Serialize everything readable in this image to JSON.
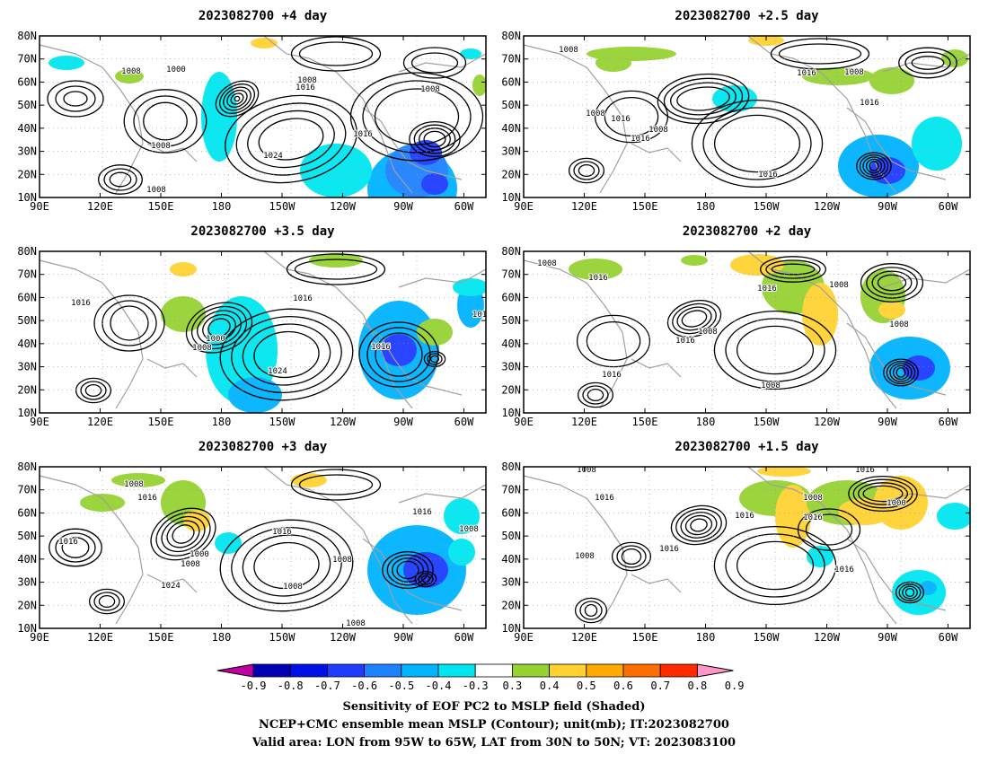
{
  "panels": [
    {
      "title": "2023082700  +4 day"
    },
    {
      "title": "2023082700  +2.5  day"
    },
    {
      "title": "2023082700  +3.5  day"
    },
    {
      "title": "2023082700  +2  day"
    },
    {
      "title": "2023082700  +3  day"
    },
    {
      "title": "2023082700  +1.5  day"
    }
  ],
  "lat_ticks": [
    "80N",
    "70N",
    "60N",
    "50N",
    "40N",
    "30N",
    "20N",
    "10N"
  ],
  "lon_ticks": [
    "90E",
    "120E",
    "150E",
    "180",
    "150W",
    "120W",
    "90W",
    "60W"
  ],
  "contour_labels": [
    [
      "1008",
      "1000",
      "1008",
      "1016",
      "1008",
      "1016",
      "1024",
      "1008",
      "1008"
    ],
    [
      "1008",
      "1016",
      "1008",
      "1008",
      "1016",
      "1008",
      "1016",
      "1016",
      "1016"
    ],
    [
      "1016",
      "1016",
      "1000",
      "1008",
      "1024",
      "1016",
      "101"
    ],
    [
      "1008",
      "1016",
      "1016",
      "1008",
      "1008",
      "1016",
      "1008",
      "1016",
      "1008"
    ],
    [
      "1008",
      "1016",
      "1016",
      "1000",
      "1008",
      "1016",
      "1024",
      "1008",
      "1008",
      "1016",
      "1008",
      "1008"
    ],
    [
      "1008",
      "1016",
      "1008",
      "1016",
      "1016",
      "1008",
      "1016",
      "1000",
      "1016",
      "1016"
    ]
  ],
  "colorbar": {
    "ticks": [
      "-0.9",
      "-0.8",
      "-0.7",
      "-0.6",
      "-0.5",
      "-0.4",
      "-0.3",
      "0.3",
      "0.4",
      "0.5",
      "0.6",
      "0.7",
      "0.8",
      "0.9"
    ],
    "colors": [
      "#c000a0",
      "#0000b4",
      "#0010e6",
      "#1e3cff",
      "#1e82ff",
      "#00b4ff",
      "#00e6f0",
      "#ffffff",
      "#96d232",
      "#ffd232",
      "#ffaa00",
      "#ff6e00",
      "#ff2800",
      "#ff96c8"
    ]
  },
  "footer": {
    "line1": "Sensitivity of EOF PC2 to MSLP field (Shaded)",
    "line2": "NCEP+CMC ensemble mean MSLP (Contour); unit(mb); IT:2023082700",
    "line3": "Valid area: LON from 95W to 65W, LAT from 30N to 50N; VT: 2023083100"
  }
}
